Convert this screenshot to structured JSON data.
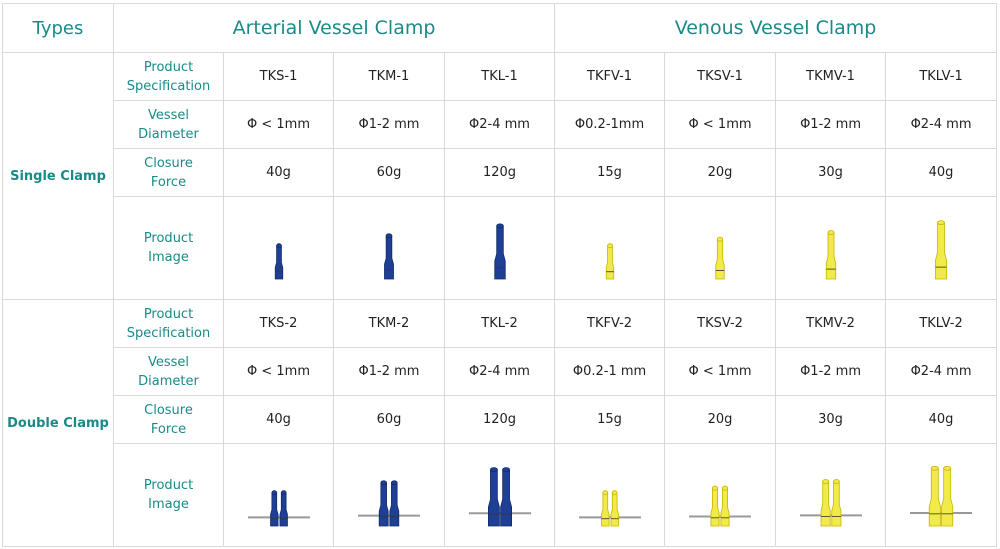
{
  "header": {
    "types": "Types",
    "arterial": "Arterial Vessel Clamp",
    "venous": "Venous Vessel Clamp"
  },
  "row_labels": {
    "spec": [
      "Product",
      "Specification"
    ],
    "diameter": [
      "Vessel",
      "Diameter"
    ],
    "force": [
      "Closure",
      "Force"
    ],
    "image": [
      "Product",
      "Image"
    ]
  },
  "colors": {
    "accent": "#1a8a88",
    "arterial": "#1f3f95",
    "venous": "#f0ea4a",
    "border": "#d9d9d9"
  },
  "groups": [
    {
      "name": "Single Clamp",
      "specs": [
        "TKS-1",
        "TKM-1",
        "TKL-1",
        "TKFV-1",
        "TKSV-1",
        "TKMV-1",
        "TKLV-1"
      ],
      "diameters": [
        "Φ < 1mm",
        "Φ1-2 mm",
        "Φ2-4 mm",
        "Φ0.2-1mm",
        "Φ < 1mm",
        "Φ1-2 mm",
        "Φ2-4 mm"
      ],
      "forces": [
        "40g",
        "60g",
        "120g",
        "15g",
        "20g",
        "30g",
        "40g"
      ]
    },
    {
      "name": "Double Clamp",
      "specs": [
        "TKS-2",
        "TKM-2",
        "TKL-2",
        "TKFV-2",
        "TKSV-2",
        "TKMV-2",
        "TKLV-2"
      ],
      "diameters": [
        "Φ < 1mm",
        "Φ1-2 mm",
        "Φ2-4 mm",
        "Φ0.2-1 mm",
        "Φ < 1mm",
        "Φ1-2 mm",
        "Φ2-4 mm"
      ],
      "forces": [
        "40g",
        "60g",
        "120g",
        "15g",
        "20g",
        "30g",
        "40g"
      ]
    }
  ]
}
